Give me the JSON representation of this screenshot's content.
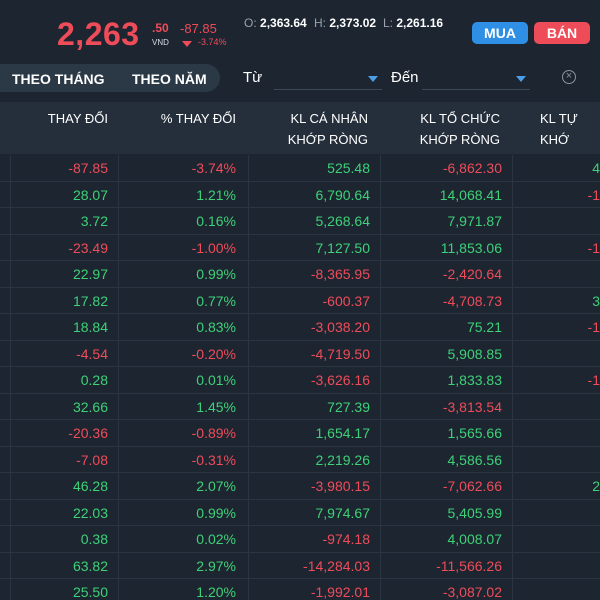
{
  "header": {
    "price_main": "2,263",
    "price_dec": ".50",
    "unit": "VND",
    "change": "-87.85",
    "change_pct": "-3.74%",
    "open_label": "O:",
    "open": "2,363.64",
    "high_label": "H:",
    "high": "2,373.02",
    "low_label": "L:",
    "low": "2,261.16",
    "buy_label": "MUA",
    "sell_label": "BÁN"
  },
  "filters": {
    "tab_month": "THEO THÁNG",
    "tab_year": "THEO NĂM",
    "from_label": "Từ",
    "to_label": "Đến"
  },
  "table": {
    "columns": {
      "change": "THAY ĐỔI",
      "pct_change": "% THAY ĐỔI",
      "individual_1": "KL CÁ NHÂN",
      "individual_2": "KHỚP RÒNG",
      "institution_1": "KL TỔ CHỨC",
      "institution_2": "KHỚP RÒNG",
      "proprietary_1": "KL TỰ",
      "proprietary_2": "KHỚ"
    },
    "rows": [
      {
        "change": "-87.85",
        "pct": "-3.74%",
        "individual": "525.48",
        "institution": "-6,862.30",
        "proprietary": "4"
      },
      {
        "change": "28.07",
        "pct": "1.21%",
        "individual": "6,790.64",
        "institution": "14,068.41",
        "proprietary": "-1"
      },
      {
        "change": "3.72",
        "pct": "0.16%",
        "individual": "5,268.64",
        "institution": "7,971.87",
        "proprietary": ""
      },
      {
        "change": "-23.49",
        "pct": "-1.00%",
        "individual": "7,127.50",
        "institution": "11,853.06",
        "proprietary": "-1"
      },
      {
        "change": "22.97",
        "pct": "0.99%",
        "individual": "-8,365.95",
        "institution": "-2,420.64",
        "proprietary": ""
      },
      {
        "change": "17.82",
        "pct": "0.77%",
        "individual": "-600.37",
        "institution": "-4,708.73",
        "proprietary": "3"
      },
      {
        "change": "18.84",
        "pct": "0.83%",
        "individual": "-3,038.20",
        "institution": "75.21",
        "proprietary": "-1"
      },
      {
        "change": "-4.54",
        "pct": "-0.20%",
        "individual": "-4,719.50",
        "institution": "5,908.85",
        "proprietary": ""
      },
      {
        "change": "0.28",
        "pct": "0.01%",
        "individual": "-3,626.16",
        "institution": "1,833.83",
        "proprietary": "-1"
      },
      {
        "change": "32.66",
        "pct": "1.45%",
        "individual": "727.39",
        "institution": "-3,813.54",
        "proprietary": ""
      },
      {
        "change": "-20.36",
        "pct": "-0.89%",
        "individual": "1,654.17",
        "institution": "1,565.66",
        "proprietary": ""
      },
      {
        "change": "-7.08",
        "pct": "-0.31%",
        "individual": "2,219.26",
        "institution": "4,586.56",
        "proprietary": ""
      },
      {
        "change": "46.28",
        "pct": "2.07%",
        "individual": "-3,980.15",
        "institution": "-7,062.66",
        "proprietary": "2"
      },
      {
        "change": "22.03",
        "pct": "0.99%",
        "individual": "7,974.67",
        "institution": "5,405.99",
        "proprietary": ""
      },
      {
        "change": "0.38",
        "pct": "0.02%",
        "individual": "-974.18",
        "institution": "4,008.07",
        "proprietary": ""
      },
      {
        "change": "63.82",
        "pct": "2.97%",
        "individual": "-14,284.03",
        "institution": "-11,566.26",
        "proprietary": ""
      },
      {
        "change": "25.50",
        "pct": "1.20%",
        "individual": "-1,992.01",
        "institution": "-3,087.02",
        "proprietary": ""
      }
    ]
  },
  "colors": {
    "up": "#3ed178",
    "down": "#ef4c5a",
    "background": "#1c2530",
    "buy": "#2f8fe4",
    "sell": "#ef4c5a"
  }
}
